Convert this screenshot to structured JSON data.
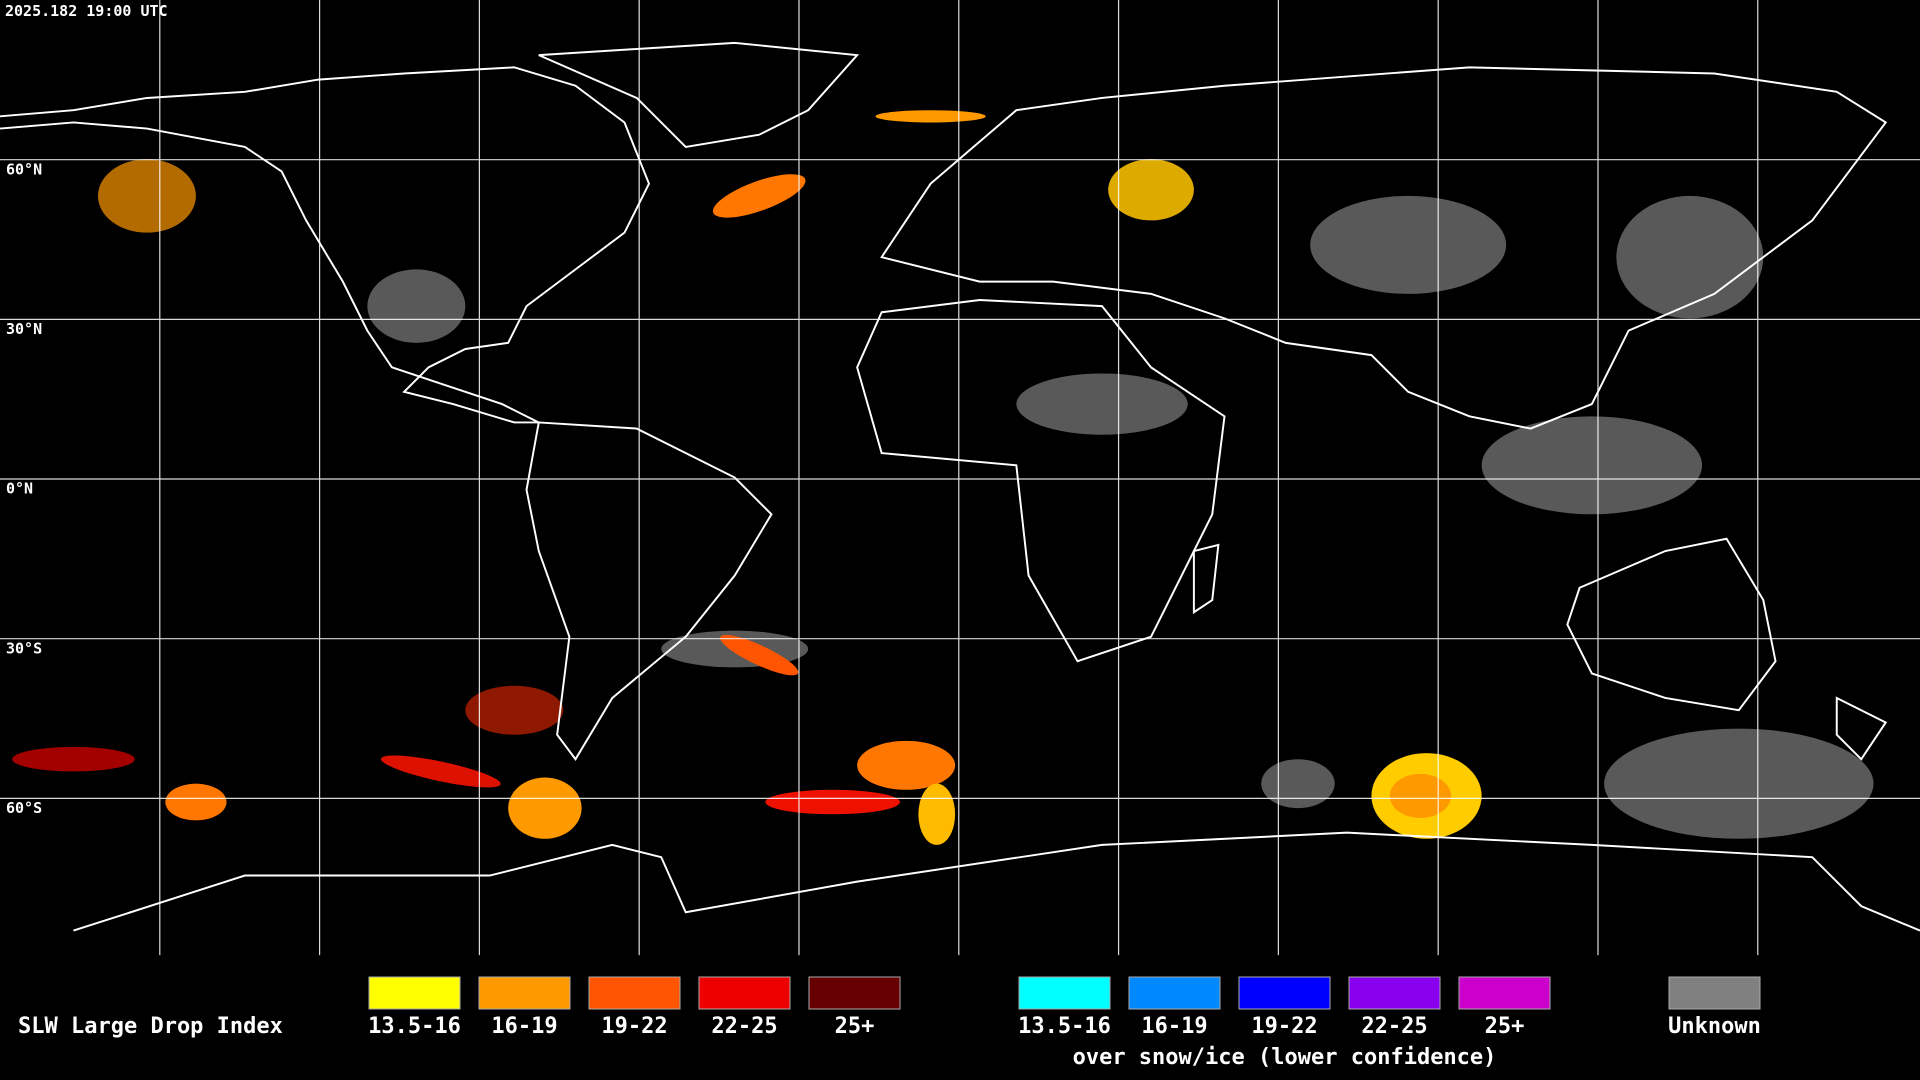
{
  "timestamp": "2025.182 19:00 UTC",
  "latitude_labels": [
    "60°N",
    "30°N",
    "0°N",
    "30°S",
    "60°S"
  ],
  "legend": {
    "title": "SLW Large Drop Index",
    "groups": [
      {
        "items": [
          {
            "label": "13.5-16",
            "color": "#ffff00"
          },
          {
            "label": "16-19",
            "color": "#ff9900"
          },
          {
            "label": "19-22",
            "color": "#ff5500"
          },
          {
            "label": "22-25",
            "color": "#ee0000"
          },
          {
            "label": "25+",
            "color": "#660000"
          }
        ]
      },
      {
        "items": [
          {
            "label": "13.5-16",
            "color": "#00ffff"
          },
          {
            "label": "16-19",
            "color": "#0088ff"
          },
          {
            "label": "19-22",
            "color": "#0000ff"
          },
          {
            "label": "22-25",
            "color": "#8800ee"
          },
          {
            "label": "25+",
            "color": "#cc00cc"
          }
        ],
        "subtitle": "over snow/ice (lower confidence)"
      },
      {
        "items": [
          {
            "label": "Unknown",
            "color": "#808080"
          }
        ]
      }
    ]
  }
}
